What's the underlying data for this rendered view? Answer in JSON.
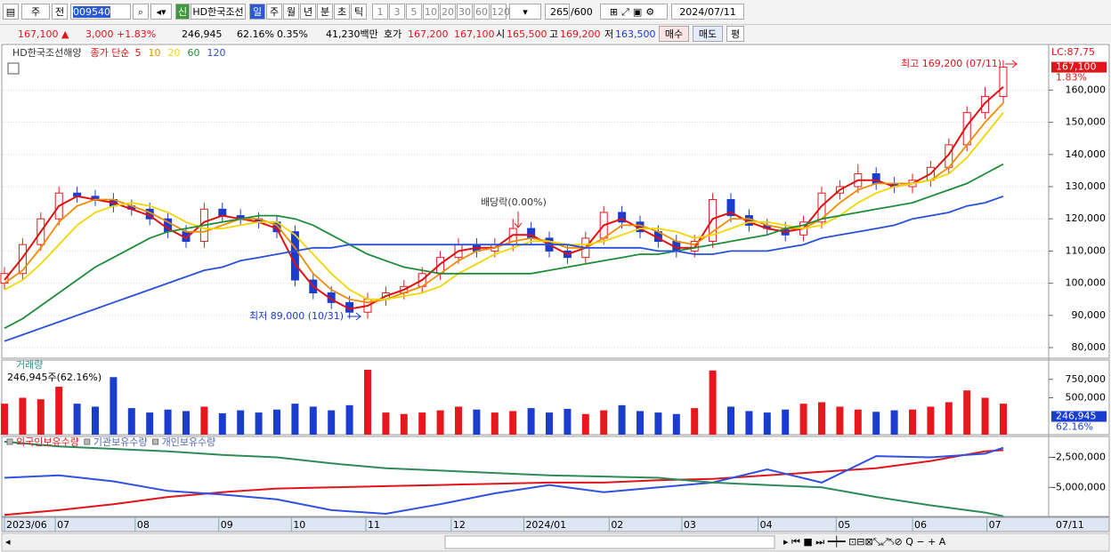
{
  "toolbar": {
    "period_type": "주",
    "prev": "전",
    "code": "009540",
    "new_badge": "신",
    "name": "HD한국조선",
    "intervals": [
      "일",
      "주",
      "월",
      "년",
      "분",
      "초",
      "틱"
    ],
    "minutes": [
      "1",
      "3",
      "5",
      "10",
      "20",
      "30",
      "60",
      "120"
    ],
    "count": "265",
    "max_count": "/600",
    "date": "2024/07/11"
  },
  "quote": {
    "price": "167,100 ▲",
    "change": "3,000",
    "change_pct": "+1.83%",
    "volume": "246,945",
    "volume_ratio": "62.16%",
    "turnover": "0.35%",
    "amount": "41,230백만",
    "ask_label": "호가",
    "ask": "167,200",
    "bid": "167,100",
    "open_label": "시",
    "open": "165,500",
    "high_label": "고",
    "high": "169,200",
    "low_label": "저",
    "low": "163,500",
    "buy": "매수",
    "sell": "매도",
    "eval": "평"
  },
  "chart_data": [
    {
      "type": "candlestick",
      "title": "HD한국조선해양",
      "legend_title": "종가 단순",
      "up_color": "#e8161d",
      "down_color": "#1a3dd0",
      "open": [
        100000,
        103000,
        112000,
        120000,
        128000,
        127000,
        126000,
        124000,
        123000,
        120000,
        116000,
        113000,
        123000,
        121000,
        120000,
        119000,
        116000,
        101000,
        97000,
        94000,
        91000,
        95000,
        97000,
        99000,
        103000,
        108000,
        112000,
        110000,
        112000,
        117000,
        114000,
        110000,
        108000,
        114000,
        122000,
        119000,
        116000,
        113000,
        110000,
        113000,
        126000,
        121000,
        118000,
        117000,
        115000,
        119000,
        128000,
        130000,
        134000,
        131000,
        130000,
        132000,
        136000,
        143000,
        153000,
        158000
      ],
      "high": [
        105000,
        114000,
        122000,
        130000,
        130000,
        129000,
        128000,
        126000,
        125000,
        122000,
        118000,
        125000,
        125000,
        123000,
        122000,
        121000,
        118000,
        103000,
        99000,
        96000,
        97000,
        99000,
        101000,
        105000,
        110000,
        114000,
        114000,
        114000,
        120000,
        119000,
        116000,
        112000,
        116000,
        124000,
        124000,
        121000,
        118000,
        115000,
        115000,
        128000,
        128000,
        123000,
        120000,
        119000,
        121000,
        130000,
        132000,
        137000,
        136000,
        133000,
        134000,
        138000,
        145000,
        155000,
        161000,
        169200
      ],
      "low": [
        98000,
        101000,
        110000,
        118000,
        125000,
        124000,
        122000,
        121000,
        118000,
        114000,
        111000,
        111000,
        119000,
        118000,
        117000,
        114000,
        99000,
        95000,
        92000,
        89000,
        89000,
        93000,
        95000,
        97000,
        101000,
        106000,
        108000,
        108000,
        110000,
        112000,
        108000,
        106000,
        106000,
        112000,
        117000,
        114000,
        111000,
        108000,
        108000,
        111000,
        119000,
        116000,
        115000,
        113000,
        113000,
        117000,
        126000,
        128000,
        129000,
        128000,
        128000,
        130000,
        134000,
        141000,
        151000,
        156000
      ],
      "close": [
        103000,
        112000,
        120000,
        128000,
        127000,
        126000,
        124000,
        123000,
        120000,
        116000,
        113000,
        123000,
        121000,
        120000,
        119000,
        116000,
        101000,
        97000,
        94000,
        91000,
        95000,
        97000,
        99000,
        103000,
        108000,
        112000,
        110000,
        112000,
        117000,
        114000,
        110000,
        108000,
        114000,
        122000,
        119000,
        116000,
        113000,
        110000,
        113000,
        126000,
        121000,
        118000,
        117000,
        115000,
        119000,
        128000,
        130000,
        134000,
        131000,
        130000,
        132000,
        136000,
        143000,
        153000,
        158000,
        167100
      ],
      "series": [
        {
          "name": "5",
          "color": "#e01010",
          "values": [
            101000,
            108000,
            116000,
            124000,
            127000,
            126000,
            125000,
            123000,
            121000,
            117000,
            114000,
            119000,
            121000,
            120000,
            119000,
            117000,
            106000,
            99000,
            95000,
            92000,
            93000,
            96000,
            98000,
            101000,
            106000,
            110000,
            111000,
            111000,
            115000,
            115000,
            112000,
            109000,
            111000,
            118000,
            120000,
            117000,
            114000,
            111000,
            111000,
            120000,
            122000,
            119000,
            117000,
            116000,
            117000,
            124000,
            129000,
            132000,
            132000,
            130000,
            131000,
            134000,
            140000,
            149000,
            156000,
            161000
          ]
        },
        {
          "name": "10",
          "color": "#f08c00",
          "values": [
            100000,
            104000,
            111000,
            119000,
            124000,
            126000,
            126000,
            124000,
            122000,
            119000,
            116000,
            116000,
            118000,
            120000,
            120000,
            118000,
            111000,
            103000,
            98000,
            95000,
            94000,
            95000,
            97000,
            99000,
            103000,
            107000,
            110000,
            111000,
            113000,
            114000,
            113000,
            111000,
            111000,
            114000,
            118000,
            118000,
            116000,
            113000,
            112000,
            116000,
            120000,
            120000,
            118000,
            117000,
            117000,
            120000,
            125000,
            129000,
            131000,
            131000,
            131000,
            132000,
            136000,
            143000,
            150000,
            156000
          ]
        },
        {
          "name": "20",
          "color": "#f2d600",
          "values": [
            98000,
            101000,
            106000,
            112000,
            118000,
            122000,
            124000,
            125000,
            124000,
            122000,
            119000,
            117000,
            117000,
            118000,
            119000,
            119000,
            115000,
            109000,
            103000,
            98000,
            95000,
            95000,
            96000,
            97000,
            99000,
            103000,
            106000,
            109000,
            111000,
            113000,
            113000,
            112000,
            112000,
            113000,
            115000,
            117000,
            117000,
            116000,
            114000,
            115000,
            117000,
            119000,
            119000,
            118000,
            117000,
            118000,
            121000,
            125000,
            128000,
            130000,
            131000,
            132000,
            134000,
            139000,
            146000,
            153000
          ]
        },
        {
          "name": "60",
          "color": "#1e8c3a",
          "values": [
            86000,
            89000,
            93000,
            97000,
            101000,
            105000,
            108000,
            111000,
            114000,
            116000,
            117000,
            118000,
            119000,
            120000,
            121000,
            121000,
            120000,
            118000,
            115000,
            112000,
            109000,
            107000,
            105000,
            104000,
            103000,
            103000,
            103000,
            103000,
            103000,
            103000,
            104000,
            105000,
            106000,
            107000,
            108000,
            109000,
            109000,
            110000,
            111000,
            112000,
            113000,
            114000,
            115000,
            117000,
            118000,
            120000,
            121000,
            122000,
            123000,
            124000,
            125000,
            127000,
            129000,
            131000,
            134000,
            137000
          ]
        },
        {
          "name": "120",
          "color": "#2850d8",
          "values": [
            82000,
            84000,
            86000,
            88000,
            90000,
            92000,
            94000,
            96000,
            98000,
            100000,
            102000,
            104000,
            105000,
            107000,
            108000,
            109000,
            110000,
            111000,
            111000,
            112000,
            112000,
            112000,
            112000,
            112000,
            112000,
            112000,
            112000,
            112000,
            112000,
            112000,
            112000,
            112000,
            111000,
            111000,
            111000,
            111000,
            110000,
            110000,
            109000,
            109000,
            110000,
            110000,
            110000,
            111000,
            112000,
            114000,
            115000,
            116000,
            117000,
            118000,
            120000,
            121000,
            122000,
            124000,
            125000,
            127000
          ]
        }
      ],
      "xlim": [
        0,
        57.5
      ],
      "ylim": [
        76700,
        173900
      ],
      "yticks": [
        {
          "value": 80000,
          "label": "80,000"
        },
        {
          "value": 90000,
          "label": "90,000"
        },
        {
          "value": 100000,
          "label": "100,000"
        },
        {
          "value": 110000,
          "label": "110,000"
        },
        {
          "value": 120000,
          "label": "120,000"
        },
        {
          "value": 130000,
          "label": "130,000"
        },
        {
          "value": 140000,
          "label": "140,000"
        },
        {
          "value": 150000,
          "label": "150,000"
        },
        {
          "value": 160000,
          "label": "160,000"
        }
      ],
      "grid": true,
      "annotations": [
        "최고 169,200 (07/11)",
        "최저 89,000 (10/31)",
        "배당락(0.00%)"
      ],
      "last_price": {
        "value": 167100,
        "label": "167,100"
      },
      "change_label": "1.83%",
      "limit_label": "LC:87,75"
    },
    {
      "type": "bar",
      "title": "거래량",
      "subtitle": "246,945주(62.16%)",
      "up_color": "#e8161d",
      "down_color": "#1a3dd0",
      "values": [
        420000,
        500000,
        480000,
        650000,
        420000,
        380000,
        780000,
        360000,
        300000,
        340000,
        320000,
        380000,
        290000,
        330000,
        300000,
        340000,
        420000,
        380000,
        330000,
        400000,
        880000,
        300000,
        280000,
        300000,
        330000,
        380000,
        340000,
        300000,
        320000,
        360000,
        300000,
        350000,
        280000,
        330000,
        400000,
        320000,
        300000,
        280000,
        360000,
        870000,
        380000,
        320000,
        300000,
        340000,
        420000,
        440000,
        380000,
        340000,
        310000,
        330000,
        340000,
        380000,
        440000,
        600000,
        500000,
        420000
      ],
      "xlim": [
        0,
        57.5
      ],
      "ylim": [
        0,
        1000000
      ],
      "yticks": [
        {
          "value": 500000,
          "label": "500,000"
        },
        {
          "value": 750000,
          "label": "750,000"
        }
      ],
      "last_volume": {
        "value": 246945,
        "label": "246,945"
      },
      "ratio_label": "62.16%"
    },
    {
      "type": "line",
      "x": [
        0,
        3,
        6,
        9,
        12,
        15,
        18,
        21,
        24,
        27,
        30,
        33,
        36,
        39,
        42,
        45,
        48,
        51,
        54,
        55
      ],
      "series": [
        {
          "name": "외국인보유수량",
          "color": "#e0151b",
          "values": [
            -7300000,
            -6900000,
            -6400000,
            -5800000,
            -5400000,
            -5100000,
            -5000000,
            -4900000,
            -4800000,
            -4700000,
            -4600000,
            -4600000,
            -4400000,
            -4300000,
            -4000000,
            -3700000,
            -3400000,
            -2800000,
            -2000000,
            -1900000
          ]
        },
        {
          "name": "기관보유수량",
          "color": "#3050e0",
          "values": [
            -4200000,
            -4000000,
            -4500000,
            -5300000,
            -5600000,
            -6000000,
            -6900000,
            -7200000,
            -6400000,
            -5500000,
            -4800000,
            -5400000,
            -5000000,
            -4600000,
            -3500000,
            -4600000,
            -2400000,
            -2500000,
            -2200000,
            -1700000
          ]
        },
        {
          "name": "개인보유수량",
          "color": "#2e8b57",
          "values": [
            -1200000,
            -1600000,
            -1800000,
            -2000000,
            -2300000,
            -2500000,
            -3000000,
            -3400000,
            -3600000,
            -3800000,
            -4000000,
            -4100000,
            -4200000,
            -4600000,
            -4800000,
            -5000000,
            -5800000,
            -6500000,
            -7100000,
            -7400000
          ]
        }
      ],
      "xlim": [
        0,
        57.5
      ],
      "ylim": [
        -7424000,
        -760000
      ],
      "yticks": [
        {
          "value": -5000000,
          "label": "-5,000,000"
        },
        {
          "value": -2500000,
          "label": "-2,500,000"
        }
      ],
      "xticks": [
        {
          "value": 0,
          "label": "2023/06"
        },
        {
          "value": 2.8,
          "label": "07"
        },
        {
          "value": 7.2,
          "label": "08"
        },
        {
          "value": 11.8,
          "label": "09"
        },
        {
          "value": 15.8,
          "label": "10"
        },
        {
          "value": 19.9,
          "label": "11"
        },
        {
          "value": 24.6,
          "label": "12"
        },
        {
          "value": 28.6,
          "label": "2024/01"
        },
        {
          "value": 33.3,
          "label": "02"
        },
        {
          "value": 37.3,
          "label": "03"
        },
        {
          "value": 41.5,
          "label": "04"
        },
        {
          "value": 45.8,
          "label": "05"
        },
        {
          "value": 50,
          "label": "06"
        },
        {
          "value": 54.1,
          "label": "07"
        }
      ],
      "x_end_label": "07/11"
    }
  ]
}
